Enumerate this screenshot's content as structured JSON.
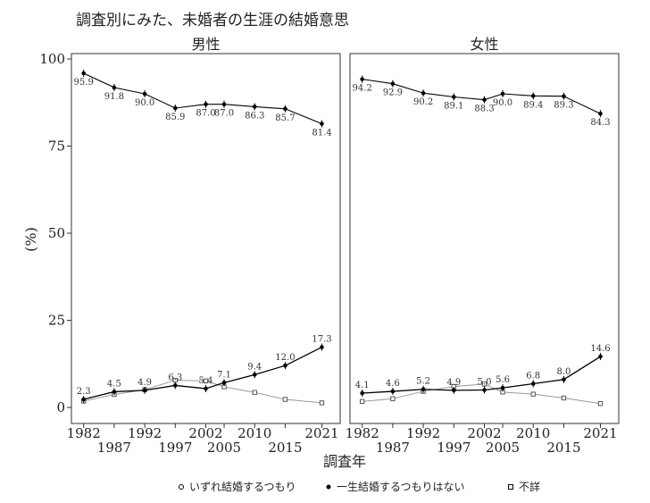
{
  "chart_data": {
    "type": "line",
    "title": "調査別にみた、未婚者の生涯の結婚意思",
    "xlabel": "調査年",
    "ylabel": "(%)",
    "ylim": [
      0,
      100
    ],
    "yticks": [
      "0",
      "25",
      "50",
      "75",
      "100"
    ],
    "x": [
      1982,
      1987,
      1992,
      1997,
      2002,
      2005,
      2010,
      2015,
      2021
    ],
    "xtick_labels": [
      "1982",
      "1987",
      "1992",
      "1997",
      "2002",
      "2005",
      "2010",
      "2015",
      "2021"
    ],
    "legend": {
      "items": [
        {
          "symbol": "open-circle",
          "label": "いずれ結婚するつもり"
        },
        {
          "symbol": "filled-circle",
          "label": "一生結婚するつもりはない"
        },
        {
          "symbol": "open-square",
          "label": "不詳"
        }
      ],
      "position": "bottom"
    },
    "panels": [
      {
        "title": "男性",
        "series": [
          {
            "name": "いずれ結婚するつもり",
            "values": [
              95.9,
              91.8,
              90.0,
              85.9,
              87.0,
              87.0,
              86.3,
              85.7,
              81.4
            ],
            "labels": [
              "95.9",
              "91.8",
              "90.0",
              "85.9",
              "87.0",
              "87.0",
              "86.3",
              "85.7",
              "81.4"
            ]
          },
          {
            "name": "一生結婚するつもりはない",
            "values": [
              2.3,
              4.5,
              4.9,
              6.3,
              5.4,
              7.1,
              9.4,
              12.0,
              17.3
            ],
            "labels": [
              "2.3",
              "4.5",
              "4.9",
              "6.3",
              "5.4",
              "7.1",
              "9.4",
              "12.0",
              "17.3"
            ]
          },
          {
            "name": "不詳",
            "values": [
              1.8,
              3.7,
              5.1,
              7.8,
              7.6,
              5.9,
              4.3,
              2.3,
              1.3
            ],
            "labels": []
          }
        ]
      },
      {
        "title": "女性",
        "series": [
          {
            "name": "いずれ結婚するつもり",
            "values": [
              94.2,
              92.9,
              90.2,
              89.1,
              88.3,
              90.0,
              89.4,
              89.3,
              84.3
            ],
            "labels": [
              "94.2",
              "92.9",
              "90.2",
              "89.1",
              "88.3",
              "90.0",
              "89.4",
              "89.3",
              "84.3"
            ]
          },
          {
            "name": "一生結婚するつもりはない",
            "values": [
              4.1,
              4.6,
              5.2,
              4.9,
              5.0,
              5.6,
              6.8,
              8.0,
              14.6
            ],
            "labels": [
              "4.1",
              "4.6",
              "5.2",
              "4.9",
              "5.0",
              "5.6",
              "6.8",
              "8.0",
              "14.6"
            ]
          },
          {
            "name": "不詳",
            "values": [
              1.7,
              2.5,
              4.6,
              6.0,
              6.7,
              4.4,
              3.8,
              2.7,
              1.1
            ],
            "labels": []
          }
        ]
      }
    ]
  }
}
